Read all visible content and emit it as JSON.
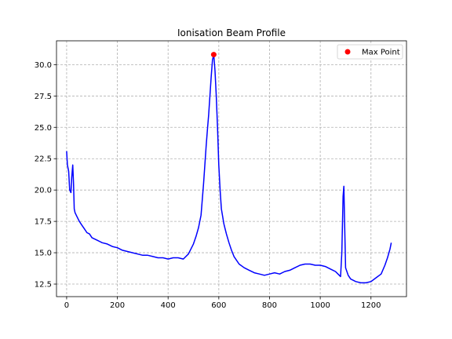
{
  "chart_data": {
    "type": "line",
    "title": "Ionisation Beam Profile",
    "xlabel": "",
    "ylabel": "",
    "xlim": [
      -40,
      1340
    ],
    "ylim": [
      11.5,
      31.9
    ],
    "x_ticks": [
      0,
      200,
      400,
      600,
      800,
      1000,
      1200
    ],
    "x_tick_labels": [
      "0",
      "200",
      "400",
      "600",
      "800",
      "1000",
      "1200"
    ],
    "y_ticks": [
      12.5,
      15.0,
      17.5,
      20.0,
      22.5,
      25.0,
      27.5,
      30.0
    ],
    "y_tick_labels": [
      "12.5",
      "15.0",
      "17.5",
      "20.0",
      "22.5",
      "25.0",
      "27.5",
      "30.0"
    ],
    "grid": true,
    "legend_position": "top-right",
    "colors": {
      "line": "#0000ff",
      "marker": "#ff0000",
      "grid": "#b0b0b0"
    },
    "series": [
      {
        "style": "line",
        "x": [
          0,
          3,
          8,
          12,
          17,
          20,
          24,
          27,
          30,
          33,
          40,
          50,
          60,
          70,
          80,
          90,
          100,
          120,
          140,
          160,
          180,
          200,
          220,
          240,
          260,
          280,
          300,
          320,
          340,
          360,
          380,
          400,
          420,
          440,
          460,
          480,
          490,
          500,
          510,
          520,
          530,
          540,
          550,
          555,
          560,
          565,
          570,
          575,
          580,
          585,
          590,
          595,
          600,
          605,
          610,
          620,
          630,
          640,
          650,
          660,
          680,
          700,
          720,
          740,
          760,
          780,
          800,
          820,
          840,
          860,
          880,
          900,
          920,
          940,
          960,
          980,
          1000,
          1020,
          1040,
          1060,
          1070,
          1080,
          1085,
          1090,
          1093,
          1096,
          1100,
          1110,
          1120,
          1140,
          1160,
          1180,
          1200,
          1220,
          1240,
          1255,
          1265,
          1275,
          1280
        ],
        "y": [
          23.1,
          22.0,
          21.5,
          20.0,
          19.8,
          21.0,
          22.0,
          20.5,
          18.5,
          18.2,
          17.9,
          17.5,
          17.2,
          16.9,
          16.6,
          16.5,
          16.2,
          16.0,
          15.8,
          15.7,
          15.5,
          15.4,
          15.2,
          15.1,
          15.0,
          14.9,
          14.8,
          14.8,
          14.7,
          14.6,
          14.6,
          14.5,
          14.6,
          14.6,
          14.5,
          14.9,
          15.3,
          15.7,
          16.3,
          17.0,
          18.0,
          20.5,
          23.5,
          24.8,
          26.0,
          27.5,
          29.0,
          30.4,
          30.8,
          29.5,
          27.5,
          25.0,
          22.0,
          20.0,
          18.5,
          17.3,
          16.5,
          15.8,
          15.2,
          14.7,
          14.1,
          13.8,
          13.6,
          13.4,
          13.3,
          13.2,
          13.3,
          13.4,
          13.3,
          13.5,
          13.6,
          13.8,
          14.0,
          14.1,
          14.1,
          14.0,
          14.0,
          13.9,
          13.7,
          13.5,
          13.3,
          13.1,
          15.0,
          19.5,
          20.3,
          17.5,
          13.8,
          13.2,
          12.9,
          12.7,
          12.6,
          12.6,
          12.7,
          13.0,
          13.3,
          14.0,
          14.6,
          15.3,
          15.8
        ]
      },
      {
        "name": "Max Point",
        "style": "marker",
        "x": [
          580
        ],
        "y": [
          30.8
        ]
      }
    ]
  }
}
